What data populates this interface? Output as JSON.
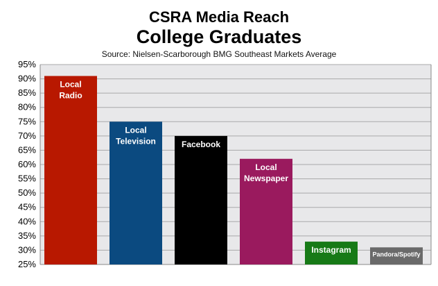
{
  "chart_data": {
    "type": "bar",
    "title": "CSRA Media Reach",
    "subtitle": "College Graduates",
    "source": "Source: Nielsen-Scarborough BMG Southeast Markets Average",
    "categories": [
      [
        "Local",
        "Radio"
      ],
      [
        "Local",
        "Television"
      ],
      [
        "Facebook"
      ],
      [
        "Local",
        "Newspaper"
      ],
      [
        "Instagram"
      ],
      [
        "Pandora/Spotify"
      ]
    ],
    "values": [
      91,
      75,
      70,
      62,
      33,
      31
    ],
    "colors": [
      "#b81800",
      "#0b4a80",
      "#000000",
      "#9a1a5e",
      "#177a17",
      "#6a6a6a"
    ],
    "ylim": [
      25,
      95
    ],
    "ytick_step": 5,
    "ytick_suffix": "%",
    "grid": true,
    "plot_background": "#e8e8ea",
    "xlabel": "",
    "ylabel": ""
  }
}
